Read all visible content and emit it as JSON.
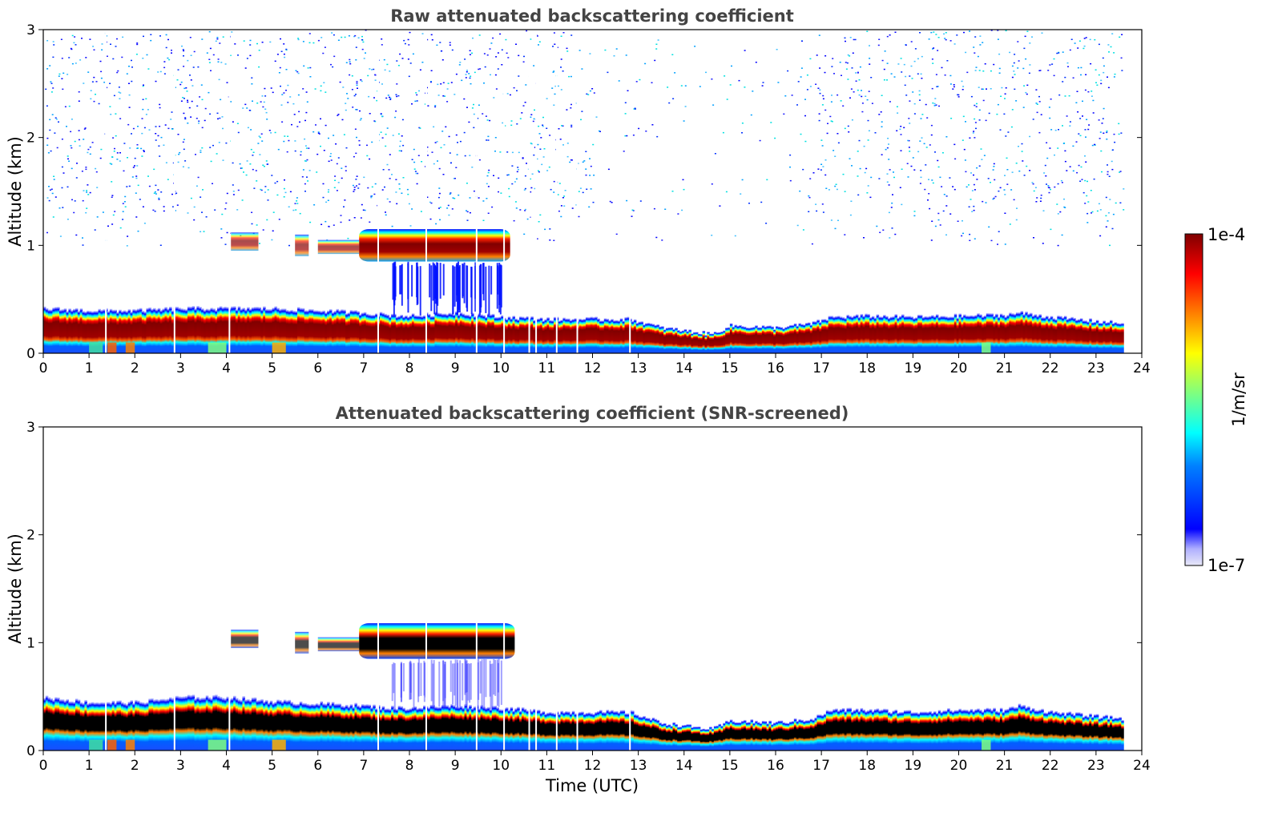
{
  "colors": {
    "jet": [
      "#000080",
      "#0000ff",
      "#00bfff",
      "#00ffff",
      "#7fff7f",
      "#ffff00",
      "#ff8000",
      "#ff0000",
      "#800000"
    ],
    "low_fade": "#e8e8f8",
    "saturated_screened": "#000000"
  },
  "colorbar": {
    "label": "1/m/sr",
    "max_label": "1e-4",
    "min_label": "1e-7",
    "scale": "log",
    "range": [
      1e-07,
      0.0001
    ]
  },
  "chart_data": [
    {
      "type": "heatmap",
      "title": "Raw attenuated backscattering coefficient",
      "xlabel": "",
      "ylabel": "Altitude (km)",
      "xlim": [
        0,
        24
      ],
      "ylim": [
        0,
        3
      ],
      "xticks": [
        "0",
        "1",
        "2",
        "3",
        "4",
        "5",
        "6",
        "7",
        "8",
        "9",
        "10",
        "11",
        "12",
        "13",
        "14",
        "15",
        "16",
        "17",
        "18",
        "19",
        "20",
        "21",
        "22",
        "23",
        "24"
      ],
      "yticks": [
        "0",
        "1",
        "2",
        "3"
      ],
      "boundary_layer_top_km": {
        "time_h": [
          0,
          1,
          2,
          3,
          4,
          5,
          6,
          7,
          7.5,
          8,
          9,
          10,
          11,
          12,
          12.8,
          13.5,
          14.2,
          14.6,
          15,
          16,
          16.8,
          17.2,
          18,
          19,
          20,
          21,
          21.3,
          22,
          23,
          23.6
        ],
        "height_km": [
          0.42,
          0.4,
          0.4,
          0.42,
          0.42,
          0.42,
          0.4,
          0.38,
          0.36,
          0.35,
          0.38,
          0.34,
          0.32,
          0.32,
          0.32,
          0.24,
          0.2,
          0.18,
          0.26,
          0.24,
          0.28,
          0.34,
          0.35,
          0.34,
          0.35,
          0.36,
          0.38,
          0.34,
          0.3,
          0.28
        ]
      },
      "cloud_layer": {
        "time_range_h": [
          6.9,
          10.2
        ],
        "altitude_range_km": [
          0.85,
          1.15
        ]
      },
      "data_end_h": 23.6
    },
    {
      "type": "heatmap",
      "title": "Attenuated backscattering coefficient (SNR-screened)",
      "xlabel": "Time (UTC)",
      "ylabel": "Altitude (km)",
      "xlim": [
        0,
        24
      ],
      "ylim": [
        0,
        3
      ],
      "xticks": [
        "0",
        "1",
        "2",
        "3",
        "4",
        "5",
        "6",
        "7",
        "8",
        "9",
        "10",
        "11",
        "12",
        "13",
        "14",
        "15",
        "16",
        "17",
        "18",
        "19",
        "20",
        "21",
        "22",
        "23",
        "24"
      ],
      "yticks": [
        "0",
        "1",
        "2",
        "3"
      ],
      "boundary_layer_top_km": {
        "time_h": [
          0,
          1,
          2,
          3,
          4,
          5,
          6,
          7,
          7.5,
          8,
          9,
          10,
          11,
          12,
          12.8,
          13.5,
          14.2,
          14.6,
          15,
          16,
          16.8,
          17.2,
          18,
          19,
          20,
          21,
          21.3,
          22,
          23,
          23.6
        ],
        "height_km": [
          0.5,
          0.45,
          0.45,
          0.5,
          0.5,
          0.46,
          0.44,
          0.42,
          0.4,
          0.4,
          0.42,
          0.4,
          0.36,
          0.36,
          0.36,
          0.26,
          0.22,
          0.2,
          0.28,
          0.26,
          0.3,
          0.38,
          0.38,
          0.36,
          0.38,
          0.38,
          0.42,
          0.36,
          0.32,
          0.3
        ]
      },
      "cloud_layer": {
        "time_range_h": [
          6.9,
          10.3
        ],
        "altitude_range_km": [
          0.85,
          1.18
        ]
      },
      "data_end_h": 23.6
    }
  ]
}
